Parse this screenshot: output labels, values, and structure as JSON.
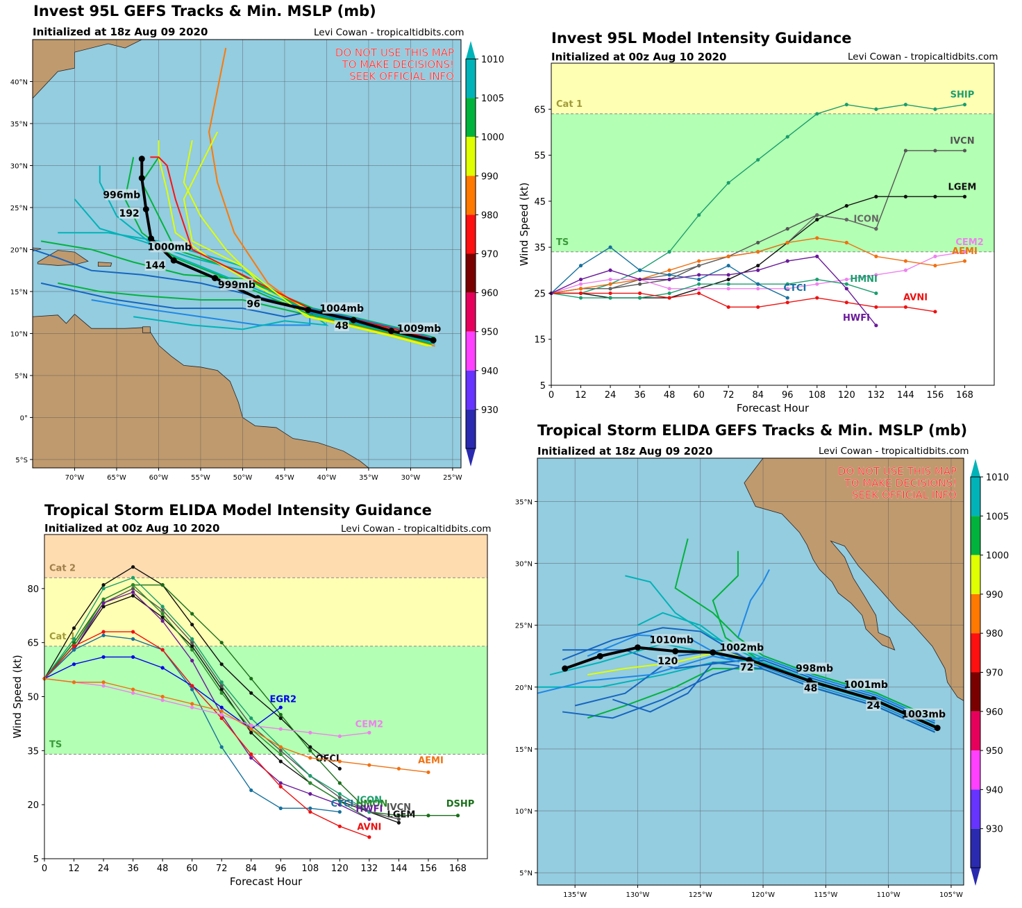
{
  "panels": {
    "map1": {
      "title": "Invest 95L GEFS Tracks & Min. MSLP (mb)",
      "subtitle": "Initialized at 18z Aug 09 2020",
      "credit": "Levi Cowan - tropicaltidbits.com",
      "warning": [
        "DO NOT USE THIS MAP",
        "TO MAKE DECISIONS!",
        "SEEK OFFICIAL INFO"
      ]
    },
    "chart1": {
      "title": "Invest 95L Model Intensity Guidance",
      "subtitle": "Initialized at 00z Aug 10 2020",
      "credit": "Levi Cowan - tropicaltidbits.com"
    },
    "chart2": {
      "title": "Tropical Storm ELIDA Model Intensity Guidance",
      "subtitle": "Initialized at 00z Aug 10 2020",
      "credit": "Levi Cowan - tropicaltidbits.com"
    },
    "map2": {
      "title": "Tropical Storm ELIDA GEFS Tracks & Min. MSLP (mb)",
      "subtitle": "Initialized at 18z Aug 09 2020",
      "credit": "Levi Cowan - tropicaltidbits.com",
      "warning": [
        "DO NOT USE THIS MAP",
        "TO MAKE DECISIONS!",
        "SEEK OFFICIAL INFO"
      ]
    }
  },
  "colors": {
    "ocean": "#94cce0",
    "land": "#bf9a6e",
    "ts_band": "#b3ffb3",
    "cat1_band": "#ffffb3",
    "cat2_band": "#ffdcb0",
    "warning_text": "#ff2020"
  },
  "colorbar": {
    "ticks": [
      "1010",
      "1005",
      "1000",
      "990",
      "980",
      "970",
      "960",
      "950",
      "940",
      "930"
    ],
    "colors": [
      "#00b3b8",
      "#00b33c",
      "#e0ff00",
      "#ff7800",
      "#ff1010",
      "#7a0000",
      "#e6005c",
      "#ff40ff",
      "#6633ff",
      "#2a2ab0"
    ]
  },
  "map1_data": {
    "lon_range": [
      -75,
      -24
    ],
    "lat_range": [
      -6,
      45
    ],
    "lat_ticks": [
      "40°N",
      "35°N",
      "30°N",
      "25°N",
      "20°N",
      "15°N",
      "10°N",
      "5°N",
      "0°",
      "5°S"
    ],
    "lon_ticks": [
      "70°W",
      "65°W",
      "60°W",
      "55°W",
      "50°W",
      "45°W",
      "40°W",
      "35°W",
      "30°W",
      "25°W"
    ],
    "mean_track": [
      [
        -27.3,
        9.2
      ],
      [
        -32.3,
        10.3
      ],
      [
        -36.8,
        11.6
      ],
      [
        -42.2,
        12.8
      ],
      [
        -48.2,
        14.2
      ],
      [
        -53.3,
        16.6
      ],
      [
        -58.2,
        18.7
      ],
      [
        -60.9,
        21.3
      ],
      [
        -61.5,
        24.8
      ],
      [
        -62.0,
        28.5
      ],
      [
        -62.0,
        30.8
      ]
    ],
    "labels": [
      {
        "text": "1009mb",
        "lon": -29.0,
        "lat": 10.3
      },
      {
        "text": "1004mb",
        "lon": -38.2,
        "lat": 12.7
      },
      {
        "text": "48",
        "lon": -38.2,
        "lat": 10.6
      },
      {
        "text": "999mb",
        "lon": -50.7,
        "lat": 15.5
      },
      {
        "text": "96",
        "lon": -48.7,
        "lat": 13.2
      },
      {
        "text": "1000mb",
        "lon": -58.7,
        "lat": 20.0
      },
      {
        "text": "144",
        "lon": -60.4,
        "lat": 17.8
      },
      {
        "text": "996mb",
        "lon": -64.4,
        "lat": 26.2
      },
      {
        "text": "192",
        "lon": -63.5,
        "lat": 24.0
      }
    ]
  },
  "map2_data": {
    "lon_range": [
      -138,
      -104
    ],
    "lat_range": [
      4,
      38.5
    ],
    "lat_ticks": [
      "35°N",
      "30°N",
      "25°N",
      "20°N",
      "15°N",
      "10°N",
      "5°N"
    ],
    "lon_ticks": [
      "135°W",
      "130°W",
      "125°W",
      "120°W",
      "115°W",
      "110°W",
      "105°W"
    ],
    "mean_track": [
      [
        -106.1,
        16.7
      ],
      [
        -111.2,
        19.0
      ],
      [
        -116.3,
        20.5
      ],
      [
        -121.1,
        22.2
      ],
      [
        -124.0,
        22.8
      ],
      [
        -127.0,
        22.9
      ],
      [
        -130.0,
        23.2
      ],
      [
        -133.0,
        22.5
      ],
      [
        -135.8,
        21.5
      ]
    ],
    "labels": [
      {
        "text": "1003mb",
        "lon": -107.2,
        "lat": 17.6
      },
      {
        "text": "1001mb",
        "lon": -111.8,
        "lat": 20.0
      },
      {
        "text": "24",
        "lon": -111.2,
        "lat": 18.3
      },
      {
        "text": "998mb",
        "lon": -115.9,
        "lat": 21.3
      },
      {
        "text": "48",
        "lon": -116.2,
        "lat": 19.7
      },
      {
        "text": "1002mb",
        "lon": -121.7,
        "lat": 23.0
      },
      {
        "text": "72",
        "lon": -121.3,
        "lat": 21.4
      },
      {
        "text": "1010mb",
        "lon": -127.3,
        "lat": 23.6
      },
      {
        "text": "120",
        "lon": -127.6,
        "lat": 21.9
      }
    ]
  },
  "chart_data": [
    {
      "type": "line",
      "title": "Invest 95L Model Intensity Guidance",
      "xlabel": "Forecast Hour",
      "ylabel": "Wind Speed (kt)",
      "xlim": [
        0,
        180
      ],
      "ylim": [
        5,
        75
      ],
      "xticks": [
        "0",
        "12",
        "24",
        "36",
        "48",
        "60",
        "72",
        "84",
        "96",
        "108",
        "120",
        "132",
        "144",
        "156",
        "168"
      ],
      "yticks": [
        "5",
        "15",
        "25",
        "35",
        "45",
        "55",
        "65"
      ],
      "bands": [
        {
          "name": "TS",
          "from": 34,
          "to": 64
        },
        {
          "name": "Cat 1",
          "from": 64,
          "to": 75
        }
      ],
      "series": [
        {
          "name": "SHIP",
          "color": "#1a9e6e",
          "x": [
            0,
            12,
            24,
            36,
            48,
            60,
            72,
            84,
            96,
            108,
            120,
            132,
            144,
            156,
            168
          ],
          "y": [
            25,
            25,
            27,
            30,
            34,
            42,
            49,
            54,
            59,
            64,
            66,
            65,
            66,
            65,
            66
          ]
        },
        {
          "name": "IVCN",
          "color": "#555555",
          "x": [
            0,
            12,
            24,
            36,
            48,
            60,
            72,
            84,
            96,
            108,
            120,
            132,
            144,
            156,
            168
          ],
          "y": [
            25,
            26,
            26,
            27,
            28,
            31,
            33,
            36,
            39,
            42,
            41,
            39,
            56,
            56,
            56
          ]
        },
        {
          "name": "LGEM",
          "color": "#111111",
          "x": [
            0,
            12,
            24,
            36,
            48,
            60,
            72,
            84,
            96,
            108,
            120,
            132,
            144,
            156,
            168
          ],
          "y": [
            25,
            25,
            24,
            24,
            24,
            26,
            28,
            31,
            36,
            41,
            44,
            46,
            46,
            46,
            46
          ]
        },
        {
          "name": "ICON",
          "color": "#666666",
          "x": [
            0,
            12,
            24,
            36,
            48,
            60,
            72,
            84,
            96,
            108,
            120,
            132
          ],
          "y": [
            25,
            26,
            26,
            28,
            29,
            31,
            33,
            34,
            36,
            42,
            41,
            39
          ]
        },
        {
          "name": "CEM2",
          "color": "#ee82ee",
          "x": [
            0,
            12,
            24,
            36,
            48,
            60,
            72,
            84,
            96,
            108,
            120,
            132,
            144,
            156,
            168
          ],
          "y": [
            25,
            27,
            28,
            28,
            26,
            26,
            26,
            26,
            26,
            27,
            28,
            29,
            30,
            33,
            34
          ]
        },
        {
          "name": "AEMI",
          "color": "#f07010",
          "x": [
            0,
            12,
            24,
            36,
            48,
            60,
            72,
            84,
            96,
            108,
            120,
            132,
            144,
            156,
            168
          ],
          "y": [
            25,
            26,
            27,
            28,
            30,
            32,
            33,
            34,
            36,
            37,
            36,
            33,
            32,
            31,
            32
          ]
        },
        {
          "name": "HMNI",
          "color": "#1a9e6e",
          "x": [
            0,
            12,
            24,
            36,
            48,
            60,
            72,
            84,
            96,
            108,
            120,
            132
          ],
          "y": [
            25,
            24,
            24,
            24,
            25,
            27,
            27,
            27,
            27,
            28,
            27,
            25
          ]
        },
        {
          "name": "CTCI",
          "color": "#16719e",
          "x": [
            0,
            12,
            24,
            36,
            48,
            60,
            72,
            84,
            96
          ],
          "y": [
            25,
            31,
            35,
            30,
            29,
            28,
            31,
            27,
            24
          ]
        },
        {
          "name": "AVNI",
          "color": "#ee1111",
          "x": [
            0,
            12,
            24,
            36,
            48,
            60,
            72,
            84,
            96,
            108,
            120,
            132,
            144,
            156
          ],
          "y": [
            25,
            25,
            25,
            25,
            24,
            25,
            22,
            22,
            23,
            24,
            23,
            22,
            22,
            21
          ]
        },
        {
          "name": "HWFI",
          "color": "#6a1a9a",
          "x": [
            0,
            12,
            24,
            36,
            48,
            60,
            72,
            84,
            96,
            108,
            120,
            132
          ],
          "y": [
            25,
            28,
            30,
            28,
            28,
            29,
            29,
            30,
            32,
            33,
            26,
            18
          ]
        }
      ]
    },
    {
      "type": "line",
      "title": "Tropical Storm ELIDA Model Intensity Guidance",
      "xlabel": "Forecast Hour",
      "ylabel": "Wind Speed (kt)",
      "xlim": [
        0,
        180
      ],
      "ylim": [
        5,
        95
      ],
      "xticks": [
        "0",
        "12",
        "24",
        "36",
        "48",
        "60",
        "72",
        "84",
        "96",
        "108",
        "120",
        "132",
        "144",
        "156",
        "168"
      ],
      "yticks": [
        "5",
        "20",
        "35",
        "50",
        "65",
        "80"
      ],
      "bands": [
        {
          "name": "TS",
          "from": 34,
          "to": 64
        },
        {
          "name": "Cat 1",
          "from": 64,
          "to": 83
        },
        {
          "name": "Cat 2",
          "from": 83,
          "to": 95
        }
      ],
      "series": [
        {
          "name": "OFCI",
          "color": "#111111",
          "x": [
            0,
            12,
            24,
            36,
            48,
            60,
            72,
            84,
            96,
            108,
            120
          ],
          "y": [
            55,
            69,
            81,
            86,
            81,
            70,
            59,
            51,
            44,
            36,
            30
          ]
        },
        {
          "name": "DSHP",
          "color": "#1a6e1a",
          "x": [
            0,
            12,
            24,
            36,
            48,
            60,
            72,
            84,
            96,
            108,
            120,
            132,
            144,
            156,
            168
          ],
          "y": [
            55,
            65,
            77,
            81,
            81,
            73,
            65,
            55,
            45,
            35,
            26,
            18,
            17,
            17,
            17
          ]
        },
        {
          "name": "LGEM",
          "color": "#111111",
          "x": [
            0,
            12,
            24,
            36,
            48,
            60,
            72,
            84,
            96,
            108,
            120,
            132,
            144
          ],
          "y": [
            55,
            63,
            75,
            78,
            72,
            64,
            52,
            40,
            32,
            26,
            21,
            18,
            15
          ]
        },
        {
          "name": "IVCN",
          "color": "#555555",
          "x": [
            0,
            12,
            24,
            36,
            48,
            60,
            72,
            84,
            96,
            108,
            120,
            132,
            144
          ],
          "y": [
            55,
            64,
            76,
            80,
            74,
            65,
            53,
            42,
            35,
            28,
            22,
            18,
            16
          ]
        },
        {
          "name": "ICON",
          "color": "#1a9e6e",
          "x": [
            0,
            12,
            24,
            36,
            48,
            60,
            72,
            84,
            96,
            108,
            120,
            132
          ],
          "y": [
            55,
            66,
            80,
            83,
            75,
            66,
            54,
            44,
            36,
            28,
            23,
            18
          ]
        },
        {
          "name": "HMON",
          "color": "#2a8a2a",
          "x": [
            0,
            12,
            24,
            36,
            48,
            60,
            72,
            84,
            96,
            108,
            120,
            132
          ],
          "y": [
            55,
            64,
            77,
            81,
            73,
            63,
            51,
            41,
            34,
            26,
            21,
            16
          ]
        },
        {
          "name": "HWFI",
          "color": "#6a1a9a",
          "x": [
            0,
            12,
            24,
            36,
            48,
            60,
            72,
            84,
            96,
            108,
            120,
            132
          ],
          "y": [
            55,
            63,
            76,
            79,
            71,
            60,
            45,
            33,
            26,
            23,
            20,
            16
          ]
        },
        {
          "name": "CTCI",
          "color": "#16719e",
          "x": [
            0,
            12,
            24,
            36,
            48,
            60,
            72,
            84,
            96,
            108,
            120
          ],
          "y": [
            55,
            63,
            67,
            66,
            63,
            52,
            36,
            24,
            19,
            19,
            18
          ]
        },
        {
          "name": "EGR2",
          "color": "#0000ee",
          "x": [
            0,
            12,
            24,
            36,
            48,
            60,
            72,
            84,
            96
          ],
          "y": [
            55,
            59,
            61,
            61,
            58,
            53,
            47,
            41,
            47
          ]
        },
        {
          "name": "AVNI",
          "color": "#ee1111",
          "x": [
            0,
            12,
            24,
            36,
            48,
            60,
            72,
            84,
            96,
            108,
            120,
            132
          ],
          "y": [
            55,
            64,
            68,
            68,
            63,
            53,
            44,
            34,
            25,
            18,
            14,
            11
          ]
        },
        {
          "name": "CEM2",
          "color": "#ee82ee",
          "x": [
            0,
            12,
            24,
            36,
            48,
            60,
            72,
            84,
            96,
            108,
            120,
            132
          ],
          "y": [
            55,
            54,
            53,
            51,
            49,
            47,
            45,
            42,
            41,
            40,
            39,
            40
          ]
        },
        {
          "name": "AEMI",
          "color": "#f07010",
          "x": [
            0,
            12,
            24,
            36,
            48,
            60,
            72,
            84,
            96,
            108,
            120,
            132,
            144,
            156
          ],
          "y": [
            55,
            54,
            54,
            52,
            50,
            48,
            46,
            41,
            36,
            33,
            32,
            31,
            30,
            29
          ]
        }
      ]
    }
  ]
}
